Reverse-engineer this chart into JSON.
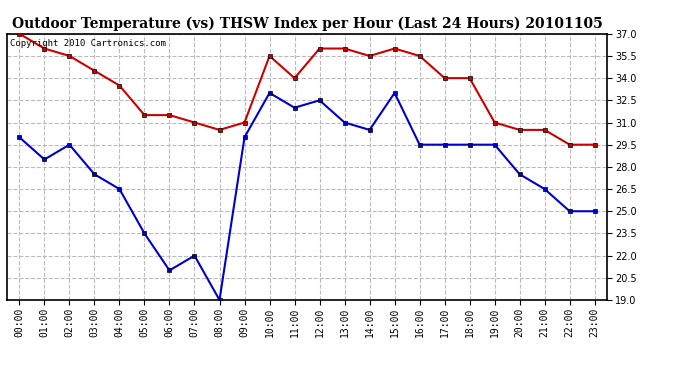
{
  "title": "Outdoor Temperature (vs) THSW Index per Hour (Last 24 Hours) 20101105",
  "copyright_text": "Copyright 2010 Cartronics.com",
  "hours": [
    "00:00",
    "01:00",
    "02:00",
    "03:00",
    "04:00",
    "05:00",
    "06:00",
    "07:00",
    "08:00",
    "09:00",
    "10:00",
    "11:00",
    "12:00",
    "13:00",
    "14:00",
    "15:00",
    "16:00",
    "17:00",
    "18:00",
    "19:00",
    "20:00",
    "21:00",
    "22:00",
    "23:00"
  ],
  "thsw": [
    37.0,
    36.0,
    35.5,
    34.5,
    33.5,
    31.5,
    31.5,
    31.0,
    30.5,
    31.0,
    35.5,
    34.0,
    36.0,
    36.0,
    35.5,
    36.0,
    35.5,
    34.0,
    34.0,
    31.0,
    30.5,
    30.5,
    29.5,
    29.5
  ],
  "temp": [
    30.0,
    28.5,
    29.5,
    27.5,
    26.5,
    23.5,
    21.0,
    22.0,
    19.0,
    30.0,
    33.0,
    32.0,
    32.5,
    31.0,
    30.5,
    33.0,
    29.5,
    29.5,
    29.5,
    29.5,
    27.5,
    26.5,
    25.0,
    25.0
  ],
  "ylim": [
    19.0,
    37.0
  ],
  "yticks": [
    19.0,
    20.5,
    22.0,
    23.5,
    25.0,
    26.5,
    28.0,
    29.5,
    31.0,
    32.5,
    34.0,
    35.5,
    37.0
  ],
  "thsw_color": "#cc0000",
  "temp_color": "#0000cc",
  "bg_color": "#ffffff",
  "plot_bg_color": "#ffffff",
  "grid_color": "#bbbbbb",
  "title_fontsize": 10,
  "tick_fontsize": 7,
  "copyright_fontsize": 6.5
}
